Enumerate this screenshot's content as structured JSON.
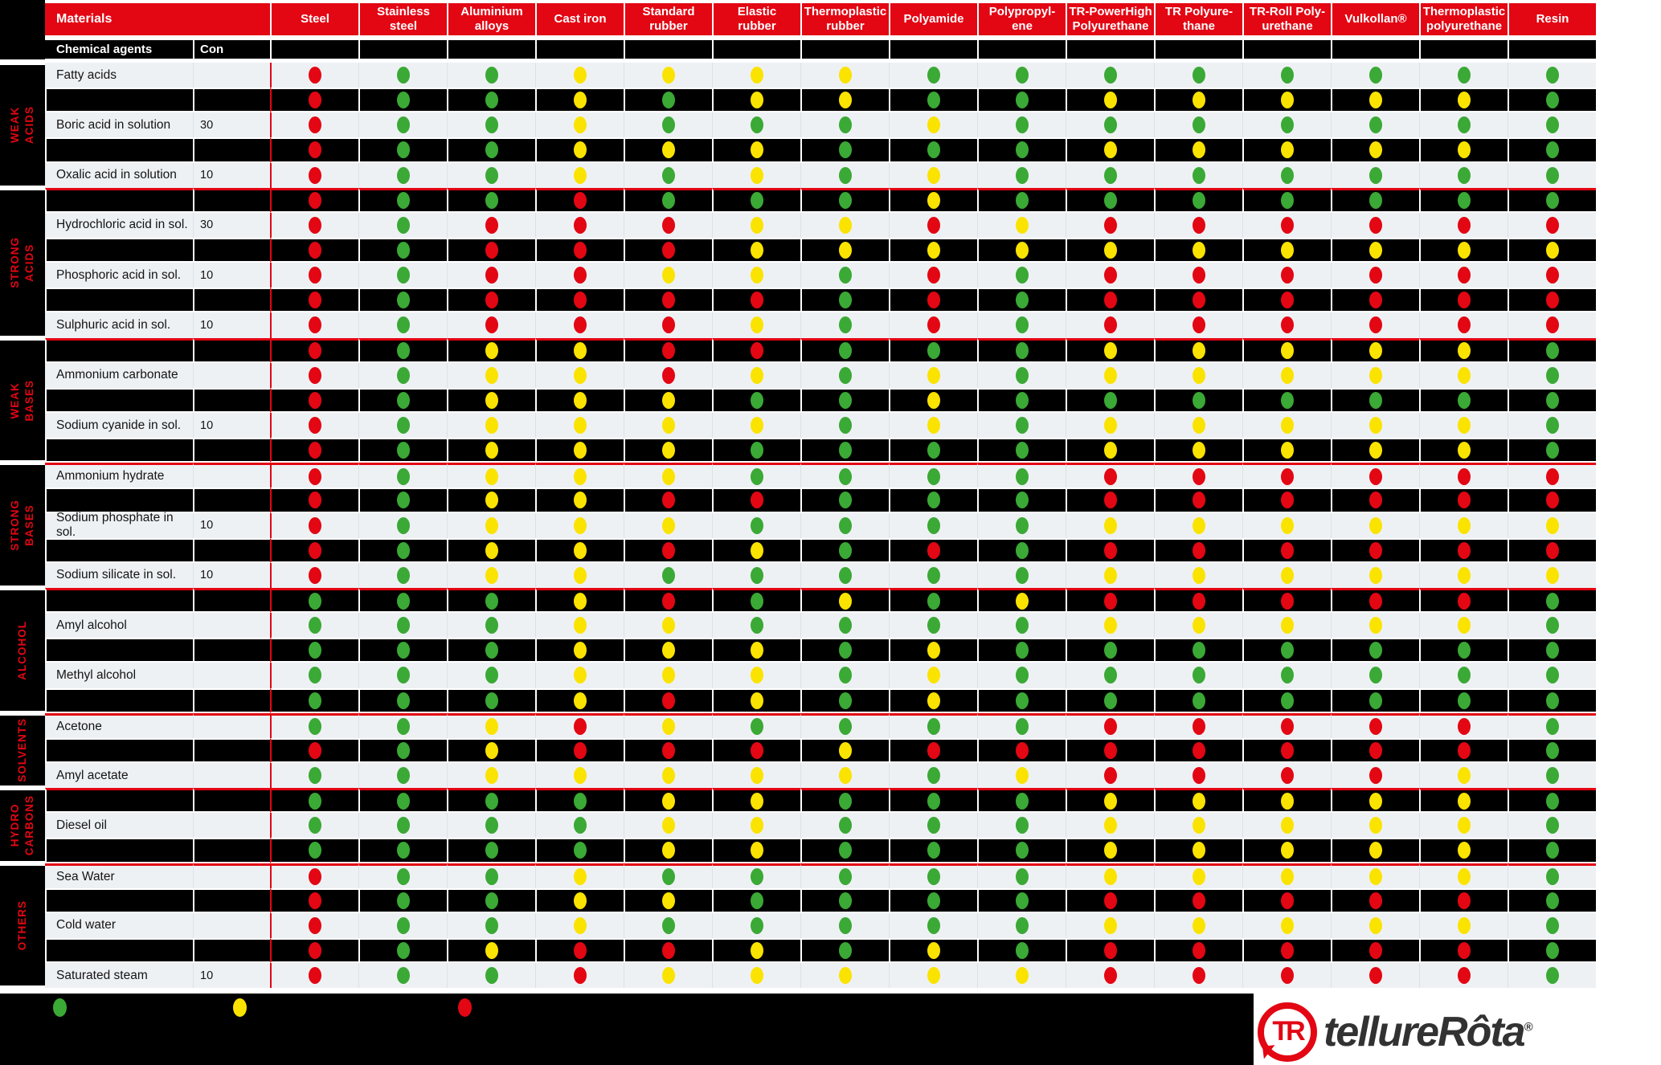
{
  "palette": {
    "red": "#e30613",
    "green": "#3aa935",
    "yellow": "#fbe300",
    "row_light": "#eef1f4"
  },
  "dot_key": {
    "R": "red",
    "G": "green",
    "Y": "yellow"
  },
  "header": {
    "materials": "Materials",
    "chemical_agents": "Chemical agents",
    "concentration": "Con",
    "columns": [
      "Steel",
      "Stainless\nsteel",
      "Aluminium\nalloys",
      "Cast iron",
      "Standard\nrubber",
      "Elastic\nrubber",
      "Thermoplastic\nrubber",
      "Polyamide",
      "Polypropyl-\nene",
      "TR-PowerHigh\nPolyurethane",
      "TR Polyure-\nthane",
      "TR-Roll Poly-\nurethane",
      "Vulkollan®",
      "Thermoplastic\npolyurethane",
      "Resin"
    ]
  },
  "sections": [
    {
      "label": "WEAK\nACIDS",
      "rows": [
        {
          "agent": "Fatty acids",
          "con": "",
          "dots": "RGGYYYYGGGGGGGG"
        },
        {
          "agent": "",
          "con": "",
          "dots": "RGGYGYYGGYYYYYG"
        },
        {
          "agent": "Boric acid in solution",
          "con": "30",
          "dots": "RGGYGGGYGGGGGGG"
        },
        {
          "agent": "",
          "con": "",
          "dots": "RGGYYYGGGYYYYYG"
        },
        {
          "agent": "Oxalic acid in solution",
          "con": "10",
          "dots": "RGGYGYGYGGGGGGG"
        }
      ]
    },
    {
      "label": "STRONG\nACIDS",
      "rows": [
        {
          "agent": "",
          "con": "",
          "dots": "RGGRGGGYGGGGGGG"
        },
        {
          "agent": "Hydrochloric acid in sol.",
          "con": "30",
          "dots": "RGRRRYYRYRRRRRR"
        },
        {
          "agent": "",
          "con": "",
          "dots": "RGRRRYYYYYYYYYY"
        },
        {
          "agent": "Phosphoric acid in sol.",
          "con": "10",
          "dots": "RGRRYYGRGRRRRRR"
        },
        {
          "agent": "",
          "con": "",
          "dots": "RGRRRRGRGRRRRRR"
        },
        {
          "agent": "Sulphuric acid in sol.",
          "con": "10",
          "dots": "RGRRRYGRGRRRRRR"
        }
      ]
    },
    {
      "label": "WEAK\nBASES",
      "rows": [
        {
          "agent": "",
          "con": "",
          "dots": "RGYYRRGGGYYYYYG"
        },
        {
          "agent": "Ammonium carbonate",
          "con": "",
          "dots": "RGYYRYGYGYYYYYG"
        },
        {
          "agent": "",
          "con": "",
          "dots": "RGYYYGGYGGGGGGG"
        },
        {
          "agent": "Sodium cyanide in sol.",
          "con": "10",
          "dots": "RGYYYYGYGYYYYYG"
        },
        {
          "agent": "",
          "con": "",
          "dots": "RGYYYGGGGYYYYYG"
        }
      ]
    },
    {
      "label": "STRONG\nBASES",
      "rows": [
        {
          "agent": "Ammonium hydrate",
          "con": "",
          "dots": "RGYYYGGGGRRRRRR"
        },
        {
          "agent": "",
          "con": "",
          "dots": "RGYYRRGGGRRRRRR"
        },
        {
          "agent": "Sodium phosphate in sol.",
          "con": "10",
          "dots": "RGYYYGGGGYYYYYY"
        },
        {
          "agent": "",
          "con": "",
          "dots": "RGYYRYGRGRRRRRR"
        },
        {
          "agent": "Sodium silicate in sol.",
          "con": "10",
          "dots": "RGYYGGGGGYYYYYY"
        }
      ]
    },
    {
      "label": "ALCOHOL",
      "rows": [
        {
          "agent": "",
          "con": "",
          "dots": "GGGYRGYGYRRRRRG"
        },
        {
          "agent": "Amyl alcohol",
          "con": "",
          "dots": "GGGYYGGGGYYYYYG"
        },
        {
          "agent": "",
          "con": "",
          "dots": "GGGYYYGYGGGGGGG"
        },
        {
          "agent": "Methyl alcohol",
          "con": "",
          "dots": "GGGYYYGYGGGGGGG"
        },
        {
          "agent": "",
          "con": "",
          "dots": "GGGYRYGYGGGGGGG"
        }
      ]
    },
    {
      "label": "SOLVENTS",
      "rows": [
        {
          "agent": "Acetone",
          "con": "",
          "dots": "GGYRYGGGGRRRRRG"
        },
        {
          "agent": "",
          "con": "",
          "dots": "RGYRRRYRRRRRRRG"
        },
        {
          "agent": "Amyl acetate",
          "con": "",
          "dots": "GGYYYYYGYRRRRYG"
        }
      ]
    },
    {
      "label": "HYDRO\nCARBONS",
      "rows": [
        {
          "agent": "",
          "con": "",
          "dots": "GGGGYYGGGYYYYYG"
        },
        {
          "agent": "Diesel oil",
          "con": "",
          "dots": "GGGGYYGGGYYYYYG"
        },
        {
          "agent": "",
          "con": "",
          "dots": "GGGGYYGGGYYYYYG"
        }
      ]
    },
    {
      "label": "OTHERS",
      "rows": [
        {
          "agent": "Sea Water",
          "con": "",
          "dots": "RGGYGGGGGYYYYYG"
        },
        {
          "agent": "",
          "con": "",
          "dots": "RGGYYGGGGRRRRRG"
        },
        {
          "agent": "Cold water",
          "con": "",
          "dots": "RGGYGGGGGYYYYYG"
        },
        {
          "agent": "",
          "con": "",
          "dots": "RGYRRYGYGRRRRRG"
        },
        {
          "agent": "Saturated steam",
          "con": "10",
          "dots": "RGGRYYYYYRRRRRG"
        }
      ]
    }
  ],
  "legend": {
    "dots": [
      "G",
      "Y",
      "R"
    ]
  },
  "logo": {
    "brand": "tellureRôta",
    "registered": "®",
    "monogram": "TR"
  }
}
